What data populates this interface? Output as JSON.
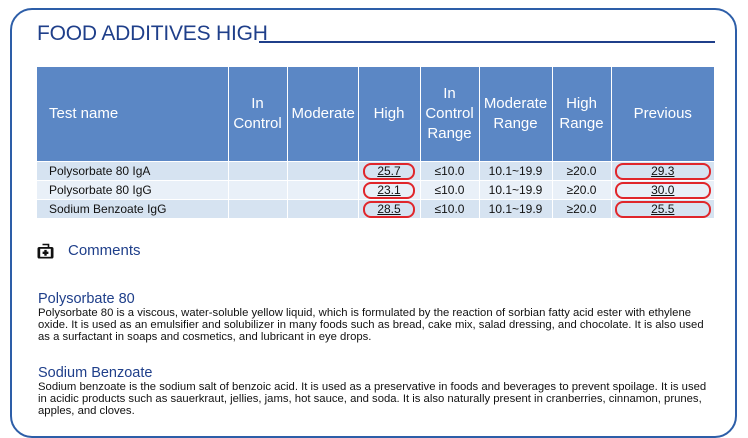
{
  "title": "FOOD ADDITIVES HIGH",
  "table": {
    "headers": [
      "Test name",
      "In Control",
      "Moderate",
      "High",
      "In Control Range",
      "Moderate Range",
      "High Range",
      "Previous"
    ],
    "rows": [
      {
        "name": "Polysorbate 80 IgA",
        "in_control": "",
        "moderate": "",
        "high": "25.7",
        "in_control_range": "≤10.0",
        "moderate_range": "10.1~19.9",
        "high_range": "≥20.0",
        "previous": "29.3"
      },
      {
        "name": "Polysorbate 80 IgG",
        "in_control": "",
        "moderate": "",
        "high": "23.1",
        "in_control_range": "≤10.0",
        "moderate_range": "10.1~19.9",
        "high_range": "≥20.0",
        "previous": "30.0"
      },
      {
        "name": "Sodium Benzoate IgG",
        "in_control": "",
        "moderate": "",
        "high": "28.5",
        "in_control_range": "≤10.0",
        "moderate_range": "10.1~19.9",
        "high_range": "≥20.0",
        "previous": "25.5"
      }
    ]
  },
  "comments": {
    "label": "Comments",
    "icon": "medical-kit-icon",
    "sections": [
      {
        "heading": "Polysorbate 80",
        "body": "Polysorbate 80 is a viscous, water-soluble yellow liquid, which is formulated by the reaction of sorbian fatty acid ester with ethylene oxide. It is used as an emulsifier and solubilizer in many foods such as bread, cake mix, salad dressing, and chocolate. It is also used as a surfactant in soaps and cosmetics, and lubricant in eye drops."
      },
      {
        "heading": "Sodium Benzoate",
        "body": "Sodium benzoate is the sodium salt of benzoic acid. It is used as a preservative in foods and beverages to prevent spoilage. It is used in acidic products such as sauerkraut, jellies, jams, hot sauce, and soda. It is also naturally present in cranberries, cinnamon, prunes, apples, and cloves."
      }
    ]
  },
  "colors": {
    "accent": "#1f3f8a",
    "header": "#5b87c5",
    "flag": "#e0262b"
  }
}
